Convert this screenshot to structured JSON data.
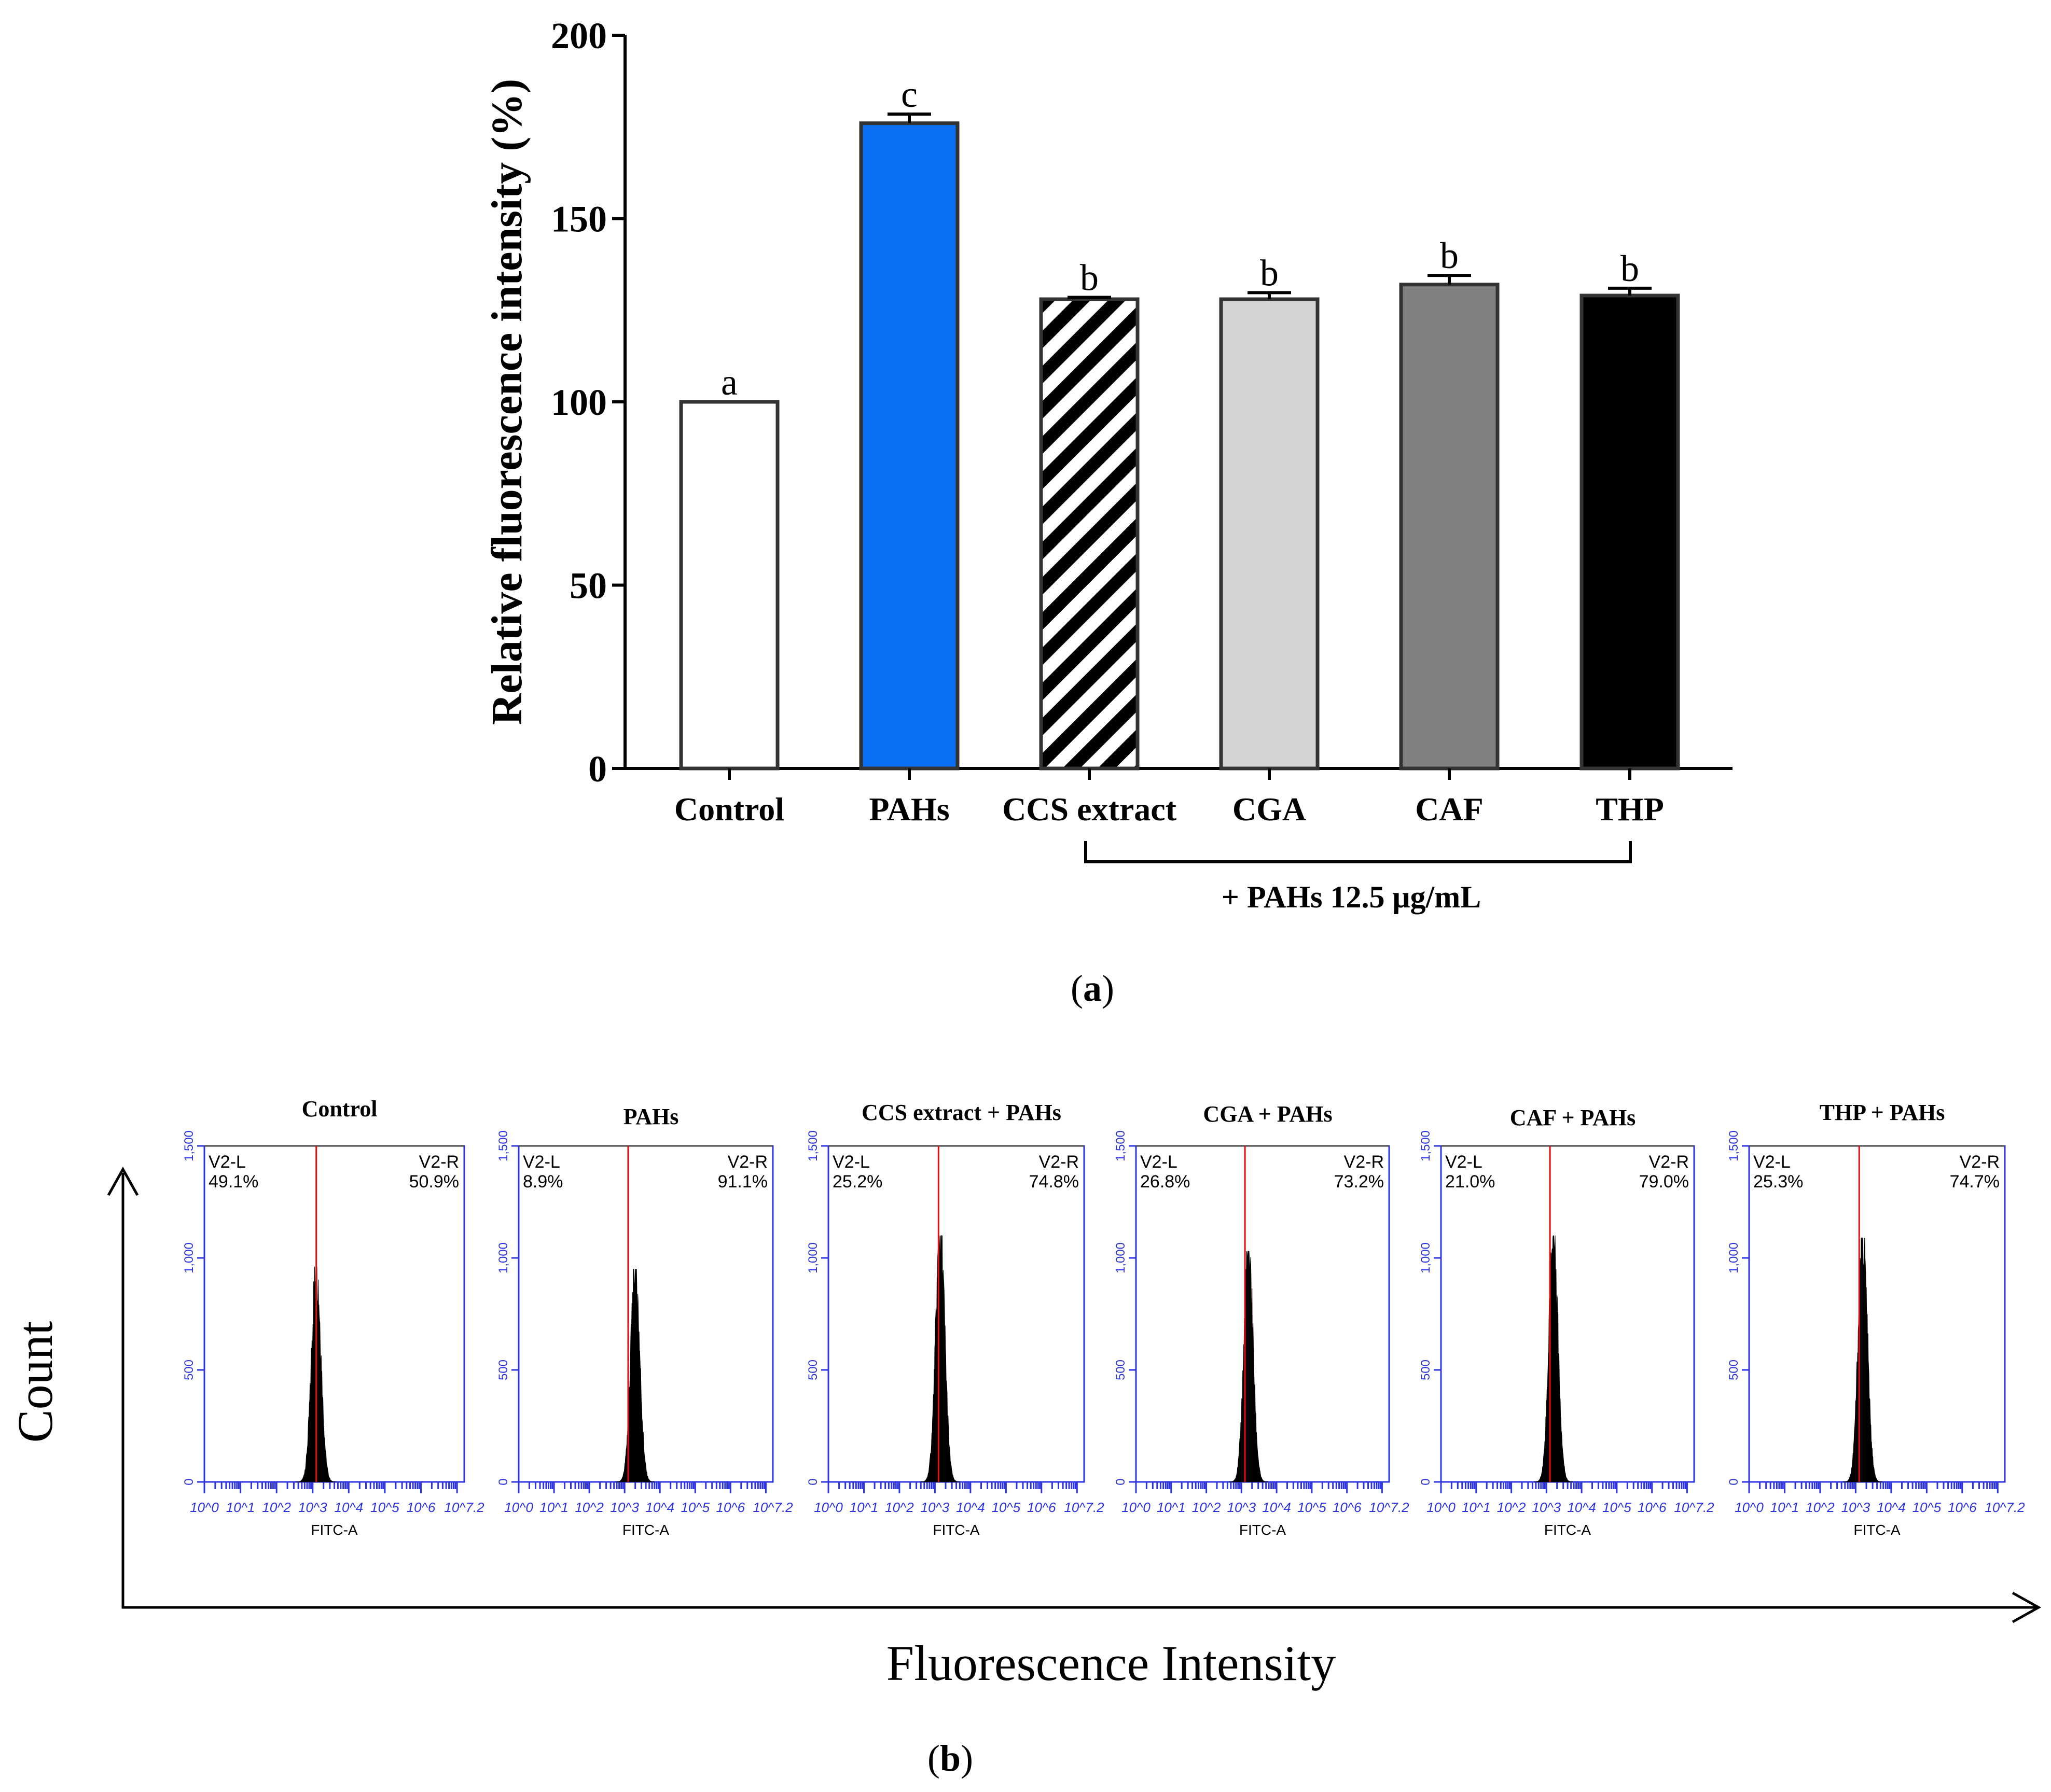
{
  "chart_data": [
    {
      "type": "bar",
      "panel": "(a)",
      "panel_letter": "a",
      "ylabel": "Relative fluorescence intensity (%)",
      "xlabel": "",
      "ylim": [
        0,
        200
      ],
      "yticks": [
        0,
        50,
        100,
        150,
        200
      ],
      "categories": [
        "Control",
        "PAHs",
        "CCS extract",
        "CGA",
        "CAF",
        "THP"
      ],
      "values": [
        100,
        176,
        128,
        128,
        132,
        129
      ],
      "errors": [
        0,
        2.5,
        0.5,
        1.8,
        2.5,
        2.0
      ],
      "significance_letters": [
        "a",
        "c",
        "b",
        "b",
        "b",
        "b"
      ],
      "fills": [
        "#ffffff",
        "#0a6ff2",
        "hatch",
        "#d4d4d4",
        "#808080",
        "#000000"
      ],
      "bracket_label": "+ PAHs 12.5 μg/mL"
    },
    {
      "type": "histogram",
      "panel": "(b)",
      "panel_letter": "b",
      "xlabel": "Fluorescence Intensity",
      "ylabel": "Count",
      "sub_xlabel": "FITC-A",
      "sub_yticks": [
        "0",
        "500",
        "1,000",
        "1,500"
      ],
      "sub_yticks_values": [
        0,
        500,
        1000,
        1500
      ],
      "sub_xticks": [
        "10^0",
        "10^1",
        "10^2",
        "10^3",
        "10^4",
        "10^5",
        "10^6",
        "10^7.2"
      ],
      "sub_xticks_exp": [
        0,
        1,
        2,
        3,
        4,
        5,
        6,
        7.2
      ],
      "gate_position_log10": 3.1,
      "panels": [
        {
          "title": "Control",
          "left_label": "V2-L",
          "left_pct": "49.1%",
          "right_label": "V2-R",
          "right_pct": "50.9%",
          "peak_log10": 3.1,
          "peak_count": 960
        },
        {
          "title": "PAHs",
          "left_label": "V2-L",
          "left_pct": "8.9%",
          "right_label": "V2-R",
          "right_pct": "91.1%",
          "peak_log10": 3.3,
          "peak_count": 950
        },
        {
          "title": "CCS extract + PAHs",
          "left_label": "V2-L",
          "left_pct": "25.2%",
          "right_label": "V2-R",
          "right_pct": "74.8%",
          "peak_log10": 3.15,
          "peak_count": 1100
        },
        {
          "title": "CGA + PAHs",
          "left_label": "V2-L",
          "left_pct": "26.8%",
          "right_label": "V2-R",
          "right_pct": "73.2%",
          "peak_log10": 3.2,
          "peak_count": 1030
        },
        {
          "title": "CAF + PAHs",
          "left_label": "V2-L",
          "left_pct": "21.0%",
          "right_label": "V2-R",
          "right_pct": "79.0%",
          "peak_log10": 3.2,
          "peak_count": 1100
        },
        {
          "title": "THP + PAHs",
          "left_label": "V2-L",
          "left_pct": "25.3%",
          "right_label": "V2-R",
          "right_pct": "74.7%",
          "peak_log10": 3.2,
          "peak_count": 1090
        }
      ]
    }
  ]
}
